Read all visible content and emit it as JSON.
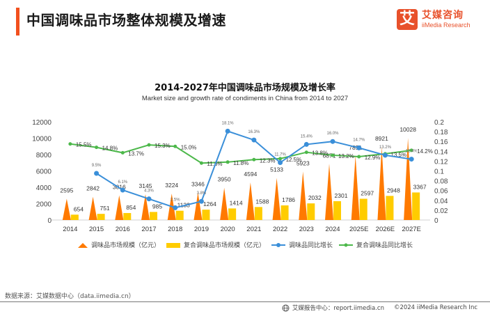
{
  "header": {
    "title": "中国调味品市场整体规模及增速",
    "logo_mark": "艾",
    "logo_cn": "艾媒咨询",
    "logo_en": "iiMedia Research",
    "accent_color": "#f2501e"
  },
  "chart_data": {
    "type": "bar",
    "title": "2014-2027年中国调味品市场规模及增长率",
    "subtitle": "Market size and growth rate of  condiments in China from 2014 to 2027",
    "categories": [
      "2014",
      "2015",
      "2016",
      "2017",
      "2018",
      "2019",
      "2020",
      "2021",
      "2022",
      "2023",
      "2024",
      "2025E",
      "2026E",
      "2027E"
    ],
    "y_left": {
      "min": 0,
      "max": 12000,
      "ticks": [
        "0",
        "2000",
        "4000",
        "6000",
        "8000",
        "10000",
        "12000"
      ]
    },
    "y_right": {
      "min": 0,
      "max": 0.2,
      "ticks": [
        "0",
        "0.02",
        "0.04",
        "0.06",
        "0.08",
        "0.1",
        "0.12",
        "0.14",
        "0.16",
        "0.18",
        "0.2"
      ]
    },
    "series": [
      {
        "name": "调味品市场规模（亿元）",
        "type": "triangle-bar",
        "axis": "left",
        "color": "#ff7a00",
        "values": [
          2595,
          2842,
          3016,
          3145,
          3224,
          3346,
          3950,
          4594,
          5133,
          5923,
          6871,
          7851,
          8921,
          10028
        ],
        "labels": [
          "2595",
          "2842",
          "3016",
          "3145",
          "3224",
          "3346",
          "3950",
          "4594",
          "5133",
          "5923",
          "6871",
          "7851",
          "8921",
          "10028"
        ]
      },
      {
        "name": "复合调味品市场规模（亿元）",
        "type": "bar",
        "axis": "left",
        "color": "#ffcc00",
        "values": [
          654,
          751,
          854,
          985,
          1133,
          1264,
          1414,
          1588,
          1786,
          2032,
          2301,
          2597,
          2948,
          3367
        ],
        "labels": [
          "654",
          "751",
          "854",
          "985",
          "1133",
          "1264",
          "1414",
          "1588",
          "1786",
          "2032",
          "2301",
          "2597",
          "2948",
          "3367"
        ]
      },
      {
        "name": "调味品同比增长",
        "type": "line",
        "axis": "right",
        "color": "#3a8fd9",
        "values": [
          null,
          0.095,
          0.061,
          0.043,
          0.025,
          0.038,
          0.181,
          0.163,
          0.117,
          0.154,
          0.16,
          0.147,
          0.132,
          0.124
        ],
        "labels": [
          "",
          "9.5%",
          "6.1%",
          "4.3%",
          "2.5%",
          "3.8%",
          "18.1%",
          "16.3%",
          "11.7%",
          "15.4%",
          "16.0%",
          "14.7%",
          "13.2%",
          "12.4%"
        ]
      },
      {
        "name": "复合调味品同比增长",
        "type": "line",
        "axis": "right",
        "color": "#4cb84a",
        "values": [
          0.155,
          0.148,
          0.137,
          0.153,
          0.15,
          0.116,
          0.118,
          0.123,
          0.125,
          0.138,
          0.132,
          0.129,
          0.135,
          0.142
        ],
        "labels": [
          "15.5%",
          "14.8%",
          "13.7%",
          "15.3%",
          "15.0%",
          "11.6%",
          "11.8%",
          "12.3%",
          "12.5%",
          "13.8%",
          "13.2%",
          "12.9%",
          "13.5%",
          "14.2%"
        ]
      }
    ],
    "legend_position": "bottom",
    "grid": false
  },
  "footer": {
    "source": "数据来源：艾媒数据中心（data.iimedia.cn）",
    "report_center": "艾媒报告中心：report.iimedia.cn",
    "copyright": "©2024  iiMedia Research  Inc"
  }
}
